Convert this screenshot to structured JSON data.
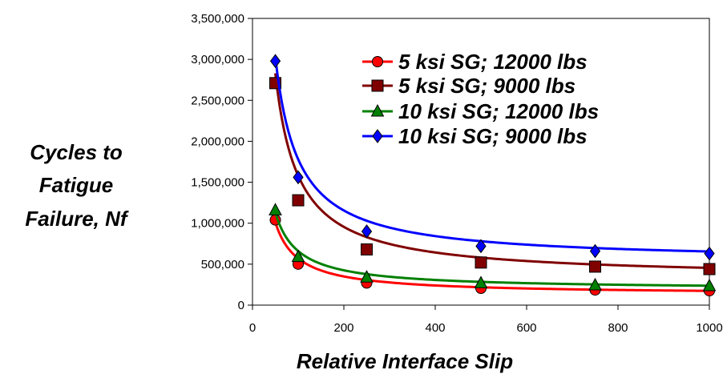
{
  "chart_data": {
    "type": "line",
    "title": "",
    "xlabel": "Relative Interface Slip",
    "ylabel_lines": [
      "Cycles to",
      "Fatigue",
      "Failure, Nf"
    ],
    "xlim": [
      0,
      1000
    ],
    "ylim": [
      0,
      3500000
    ],
    "x_ticks": [
      0,
      200,
      400,
      600,
      800,
      1000
    ],
    "x_tick_labels": [
      "0",
      "200",
      "400",
      "600",
      "800",
      "1000"
    ],
    "y_ticks": [
      0,
      500000,
      1000000,
      1500000,
      2000000,
      2500000,
      3000000,
      3500000
    ],
    "y_tick_labels": [
      "0",
      "500,000",
      "1,000,000",
      "1,500,000",
      "2,000,000",
      "2,500,000",
      "3,000,000",
      "3,500,000"
    ],
    "grid": false,
    "legend_position": "top-right",
    "series": [
      {
        "name": "5 ksi SG; 12000 lbs",
        "color": "#ff0000",
        "marker": "circle",
        "x": [
          50,
          100,
          250,
          500,
          750,
          1000
        ],
        "y": [
          1040000,
          500000,
          270000,
          205000,
          185000,
          175000
        ],
        "fit_k": 44000000,
        "fit_c": 130000
      },
      {
        "name": "5 ksi SG; 9000 lbs",
        "color": "#800000",
        "marker": "square",
        "x": [
          50,
          100,
          250,
          500,
          750,
          1000
        ],
        "y": [
          2710000,
          1280000,
          680000,
          520000,
          470000,
          440000
        ],
        "fit_k": 125000000,
        "fit_c": 330000
      },
      {
        "name": "10 ksi SG; 12000 lbs",
        "color": "#008000",
        "marker": "triangle",
        "x": [
          50,
          100,
          250,
          500,
          750,
          1000
        ],
        "y": [
          1160000,
          590000,
          340000,
          270000,
          245000,
          235000
        ],
        "fit_k": 47000000,
        "fit_c": 190000
      },
      {
        "name": "10 ksi SG; 9000 lbs",
        "color": "#0000ff",
        "marker": "diamond",
        "x": [
          50,
          100,
          250,
          500,
          750,
          1000
        ],
        "y": [
          2980000,
          1560000,
          900000,
          720000,
          660000,
          630000
        ],
        "fit_k": 125000000,
        "fit_c": 530000
      }
    ]
  }
}
